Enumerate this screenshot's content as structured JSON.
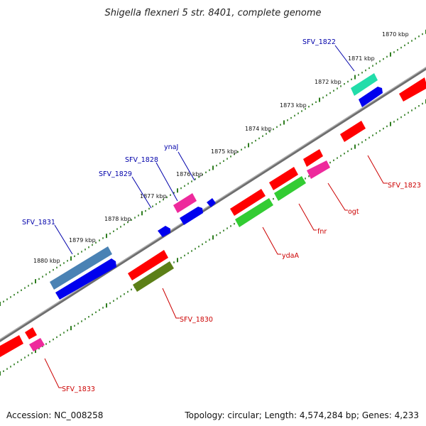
{
  "title": "Shigella flexneri 5 str. 8401, complete genome",
  "footer": {
    "accession": "Accession: NC_008258",
    "summary": "Topology: circular; Length: 4,574,284 bp; Genes: 4,233"
  },
  "colors": {
    "backbone": "#8a8a8a",
    "ticks": "#2e7d1f",
    "red": "#ff0000",
    "blue": "#0000ee",
    "pink": "#ee2a9c",
    "green": "#33cc33",
    "steelblue": "#4a82b4",
    "olive": "#5c7f17",
    "teal": "#22ddaa",
    "label_blue": "#0000aa",
    "label_red": "#cc0000"
  },
  "scale_labels": [
    "1870 kbp",
    "1871 kbp",
    "1872 kbp",
    "1873 kbp",
    "1874 kbp",
    "1875 kbp",
    "1876 kbp",
    "1877 kbp",
    "1878 kbp",
    "1879 kbp",
    "1880 kbp"
  ],
  "genes": [
    {
      "label": "SFV_1822",
      "color": "teal",
      "label_color": "label_blue"
    },
    {
      "label": "SFV_1823",
      "color": "red",
      "label_color": "label_red"
    },
    {
      "label": "ogt",
      "color": "pink",
      "label_color": "label_red"
    },
    {
      "label": "fnr",
      "color": "green",
      "label_color": "label_red"
    },
    {
      "label": "ydaA",
      "color": "green",
      "label_color": "label_red"
    },
    {
      "label": "ynaJ",
      "color": "blue",
      "label_color": "label_blue"
    },
    {
      "label": "SFV_1828",
      "color": "blue",
      "label_color": "label_blue"
    },
    {
      "label": "SFV_1829",
      "color": "blue",
      "label_color": "label_blue"
    },
    {
      "label": "SFV_1830",
      "color": "olive",
      "label_color": "label_red"
    },
    {
      "label": "SFV_1831",
      "color": "steelblue",
      "label_color": "label_blue"
    },
    {
      "label": "SFV_1833",
      "color": "pink",
      "label_color": "label_red"
    }
  ]
}
